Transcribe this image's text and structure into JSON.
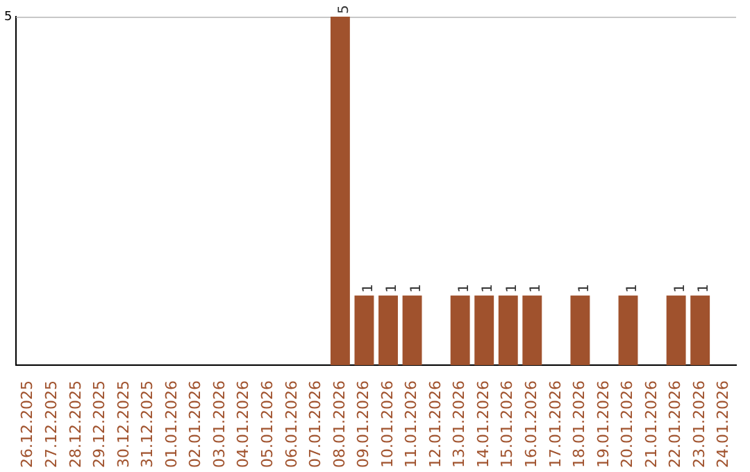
{
  "chart_data": {
    "type": "bar",
    "categories": [
      "26.12.2025",
      "27.12.2025",
      "28.12.2025",
      "29.12.2025",
      "30.12.2025",
      "31.12.2025",
      "01.01.2026",
      "02.01.2026",
      "03.01.2026",
      "04.01.2026",
      "05.01.2026",
      "06.01.2026",
      "07.01.2026",
      "08.01.2026",
      "09.01.2026",
      "10.01.2026",
      "11.01.2026",
      "12.01.2026",
      "13.01.2026",
      "14.01.2026",
      "15.01.2026",
      "16.01.2026",
      "17.01.2026",
      "18.01.2026",
      "19.01.2026",
      "20.01.2026",
      "21.01.2026",
      "22.01.2026",
      "23.01.2026",
      "24.01.2026"
    ],
    "values": [
      null,
      null,
      null,
      null,
      null,
      null,
      null,
      null,
      null,
      null,
      null,
      null,
      null,
      5,
      1,
      1,
      1,
      null,
      1,
      1,
      1,
      1,
      null,
      1,
      null,
      1,
      null,
      1,
      1,
      null
    ],
    "data_labels": true,
    "ylim": [
      0,
      5
    ],
    "yticks": [
      5
    ],
    "color": "#a0522d",
    "legend": false
  }
}
